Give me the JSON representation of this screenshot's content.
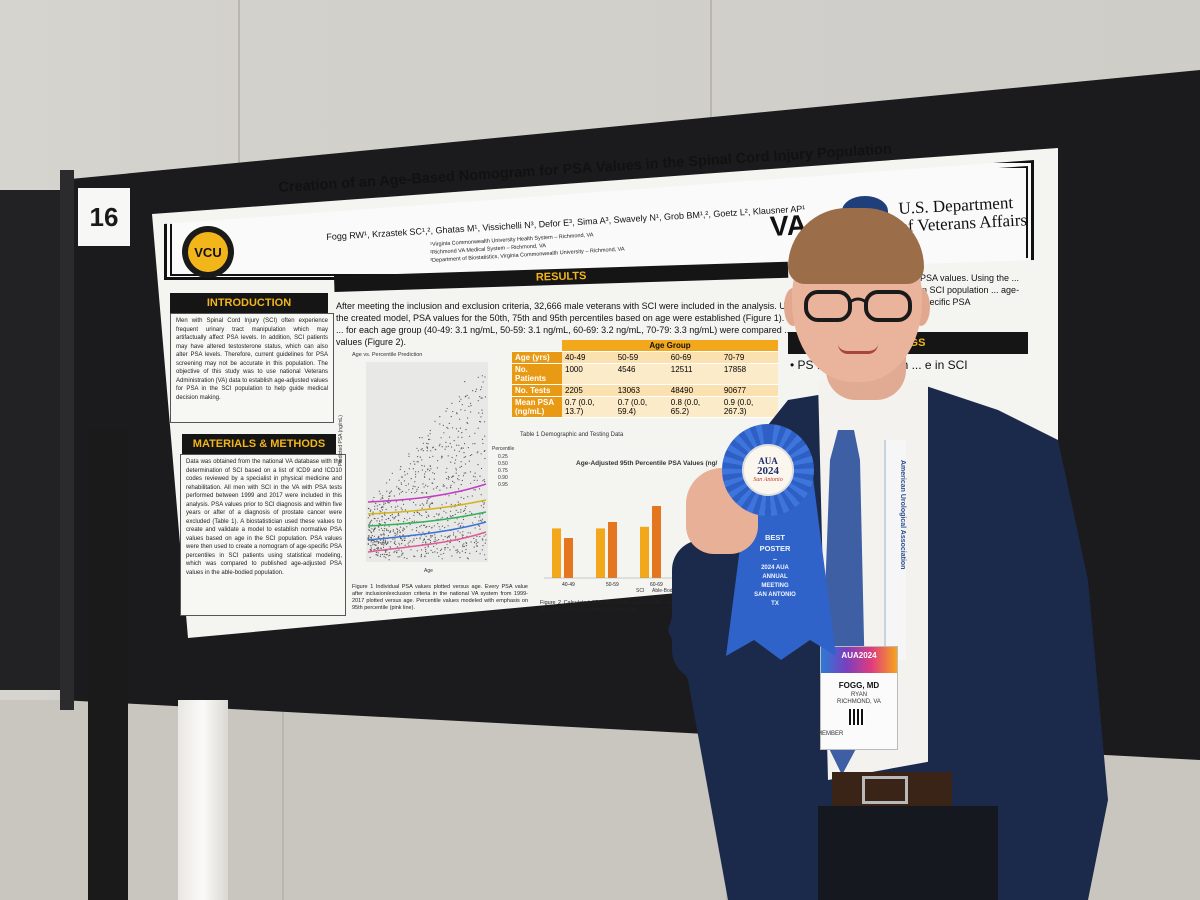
{
  "board_number": "16",
  "poster": {
    "title": "Creation of an Age-Based Nomogram for PSA Values in the Spinal Cord Injury Population",
    "authors": "Fogg RW¹, Krzastek SC¹,², Ghatas M¹, Vissichelli N³, Defor E³, Sima A³, Swavely N¹, Grob BM¹,², Goetz L², Klausner AP¹",
    "affiliations": [
      "¹Virginia Commonwealth University Health System – Richmond, VA",
      "²Richmond VA Medical System – Richmond, VA",
      "³Department of Biostatistics, Virginia Commonwealth University – Richmond, VA"
    ],
    "logo_vcu": "VCU",
    "logo_va": "VA",
    "va_dept": [
      "U.S. Department",
      "of Veterans Affairs"
    ],
    "introduction": {
      "heading": "INTRODUCTION",
      "text": "Men with Spinal Cord Injury (SCI) often experience frequent urinary tract manipulation which may artifactually affect PSA levels. In addition, SCI patients may have altered testosterone status, which can also alter PSA levels. Therefore, current guidelines for PSA screening may not be accurate in this population. The objective of this study was to use national Veterans Administration (VA) data to establish age-adjusted values for PSA in the SCI population to help guide medical decision making."
    },
    "methods": {
      "heading": "MATERIALS & METHODS",
      "text": "Data was obtained from the national VA database with the determination of SCI based on a list of ICD9 and ICD10 codes reviewed by a specialist in physical medicine and rehabilitation. All men with SCI in the VA with PSA tests performed between 1999 and 2017 were included in this analysis. PSA values prior to SCI diagnosis and within five years or after of a diagnosis of prostate cancer were excluded (Table 1). A biostatistician used these values to create and validate a model to establish normative PSA values based on age in the SCI population. PSA values were then used to create a nomogram of age-specific PSA percentiles in SCI patients using statistical modeling, which was compared to published age-adjusted PSA values in the able-bodied population."
    },
    "results": {
      "heading": "RESULTS",
      "text": "After meeting the inclusion and exclusion criteria, 32,666 male veterans with SCI were included in the analysis. Using the created model, PSA values for the 50th, 75th and 95th percentiles based on age were established (Figure 1). The ... for each age group (40-49: 3.1 ng/mL, 50-59: 3.1 ng/mL, 60-69: 3.2 ng/mL, 70-79: 3.3 ng/mL) were compared ... values (Figure 2).",
      "text_right": "PSA values. Using the ... in SCI population ... age-specific PSA"
    },
    "findings": {
      "heading": "DINGS",
      "text": "• PS ... increase much ... e in SCI"
    },
    "figure1": {
      "title": "Age vs. Percentile Prediction",
      "ylabel": "Predicted PSA (ng/mL)",
      "xlabel": "Age",
      "legend_title": "Percentile",
      "legend": [
        "0.25",
        "0.50",
        "0.75",
        "0.90",
        "0.95"
      ],
      "caption": "Figure 1 Individual PSA values plotted versus age. Every PSA value after inclusion/exclusion criteria in the national VA system from 1999-2017 plotted versus age. Percentile values modeled with emphasis on 95th percentile (pink line)."
    },
    "table1": {
      "group_header": "Age Group",
      "rows": [
        {
          "label": "Age (yrs)",
          "cells": [
            "40-49",
            "50-59",
            "60-69",
            "70-79"
          ]
        },
        {
          "label": "No. Patients",
          "cells": [
            "1000",
            "4546",
            "12511",
            "17858"
          ]
        },
        {
          "label": "No. Tests",
          "cells": [
            "2205",
            "13063",
            "48490",
            "90677"
          ]
        },
        {
          "label": "Mean PSA (ng/mL)",
          "cells": [
            "0.7 (0.0, 13.7)",
            "0.7 (0.0, 59.4)",
            "0.8 (0.0, 65.2)",
            "0.9 (0.0, 267.3)"
          ]
        }
      ],
      "caption": "Table 1 Demographic and Testing Data"
    },
    "figure2": {
      "title": "Age-Adjusted 95th Percentile PSA Values (ng/",
      "caption": "Figure 2 Calculated 95th percentile values com... values in the able-bodied population (Osterling et ...",
      "legend": [
        "SCI",
        "Able-Bodied"
      ]
    }
  },
  "chart_data": {
    "type": "bar",
    "title": "Age-Adjusted 95th Percentile PSA Values (ng/",
    "categories": [
      "40-49",
      "50-59",
      "60-69"
    ],
    "series": [
      {
        "name": "SCI",
        "values": [
          3.1,
          3.1,
          3.2
        ]
      },
      {
        "name": "Able-Bodied",
        "values": [
          2.5,
          3.5,
          4.5
        ]
      }
    ],
    "colors": [
      "#f2a81a",
      "#e4761f"
    ]
  },
  "ribbon": {
    "rosette_line1": "AUA",
    "rosette_line2": "2024",
    "rosette_line3": "San Antonio",
    "line1": "BEST",
    "line2": "POSTER",
    "line3": "2024 AUA",
    "line4": "ANNUAL",
    "line5": "MEETING",
    "line6": "SAN ANTONIO",
    "line7": "TX"
  },
  "badge": {
    "event": "AUA2024",
    "name": "FOGG, MD",
    "first": "RYAN",
    "city": "RICHMOND, VA",
    "member": "MEMBER"
  },
  "lanyard_text": "American Urological Association",
  "colors": {
    "accent": "#f2b51a",
    "header_dark": "#151515",
    "ribbon_blue": "#2f63c9",
    "jacket": "#1b2a4a"
  }
}
